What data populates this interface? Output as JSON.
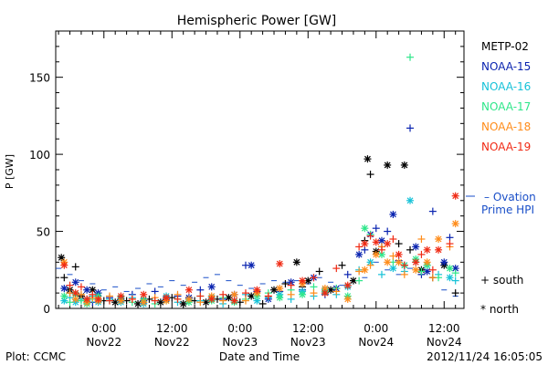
{
  "chart_data": {
    "type": "scatter",
    "title": "Hemispheric Power [GW]",
    "ylabel": "P [GW]",
    "xlabel": "Date and Time",
    "x_range_hours": [
      -4,
      14
    ],
    "ylim": [
      0,
      180
    ],
    "y_ticks": [
      0,
      50,
      100,
      150
    ],
    "y_minor_step": 10,
    "x_ticks": [
      {
        "h": 0,
        "line1": "0:00",
        "line2": "Nov22"
      },
      {
        "h": 12,
        "line1": "12:00",
        "line2": "Nov22"
      },
      {
        "h": 24,
        "line1": "0:00",
        "line2": "Nov23"
      },
      {
        "h": 36,
        "line1": "12:00",
        "line2": "Nov23"
      },
      {
        "h": 48,
        "line1": "0:00",
        "line2": "Nov24"
      },
      {
        "h": 60,
        "line1": "12:00",
        "line2": "Nov24"
      }
    ],
    "x_domain_hours": [
      -8.5,
      63.5
    ],
    "grid": false,
    "legend_position": "right",
    "series": [
      {
        "name": "METP-02",
        "color": "#000000",
        "points": [
          [
            -7.5,
            33
          ],
          [
            -7,
            20
          ],
          [
            -6,
            12
          ],
          [
            -5,
            27
          ],
          [
            -4,
            8
          ],
          [
            -3,
            6
          ],
          [
            -2,
            12
          ],
          [
            0,
            5
          ],
          [
            2,
            4
          ],
          [
            4,
            5
          ],
          [
            6,
            3
          ],
          [
            8,
            6
          ],
          [
            10,
            4
          ],
          [
            12,
            7
          ],
          [
            14,
            3
          ],
          [
            16,
            5
          ],
          [
            18,
            4
          ],
          [
            20,
            6
          ],
          [
            22,
            7
          ],
          [
            24,
            4
          ],
          [
            26,
            8
          ],
          [
            28,
            3
          ],
          [
            30,
            12
          ],
          [
            32,
            16
          ],
          [
            34,
            30
          ],
          [
            35,
            14
          ],
          [
            36,
            18
          ],
          [
            38,
            24
          ],
          [
            40,
            12
          ],
          [
            42,
            28
          ],
          [
            44,
            18
          ],
          [
            46,
            44
          ],
          [
            46.5,
            97
          ],
          [
            47,
            87
          ],
          [
            48,
            37
          ],
          [
            49,
            40
          ],
          [
            50,
            93
          ],
          [
            52,
            42
          ],
          [
            53,
            93
          ],
          [
            54,
            38
          ],
          [
            56,
            25
          ],
          [
            58,
            20
          ],
          [
            60,
            28
          ],
          [
            62,
            10
          ]
        ]
      },
      {
        "name": "NOAA-15",
        "color": "#0a24b0",
        "points": [
          [
            -7,
            13
          ],
          [
            -6,
            10
          ],
          [
            -5,
            17
          ],
          [
            -4,
            6
          ],
          [
            -3,
            12
          ],
          [
            -2,
            4
          ],
          [
            -1,
            10
          ],
          [
            1,
            7
          ],
          [
            3,
            6
          ],
          [
            5,
            9
          ],
          [
            7,
            5
          ],
          [
            9,
            11
          ],
          [
            11,
            6
          ],
          [
            13,
            8
          ],
          [
            15,
            7
          ],
          [
            17,
            12
          ],
          [
            19,
            14
          ],
          [
            21,
            6
          ],
          [
            23,
            9
          ],
          [
            25,
            28
          ],
          [
            26,
            28
          ],
          [
            27,
            11
          ],
          [
            29,
            6
          ],
          [
            31,
            11
          ],
          [
            33,
            17
          ],
          [
            35,
            12
          ],
          [
            37,
            20
          ],
          [
            39,
            9
          ],
          [
            41,
            13
          ],
          [
            43,
            22
          ],
          [
            45,
            35
          ],
          [
            46,
            38
          ],
          [
            47,
            48
          ],
          [
            48,
            52
          ],
          [
            49,
            44
          ],
          [
            50,
            50
          ],
          [
            51,
            61
          ],
          [
            52,
            31
          ],
          [
            53,
            28
          ],
          [
            54,
            117
          ],
          [
            55,
            40
          ],
          [
            56,
            22
          ],
          [
            57,
            24
          ],
          [
            58,
            63
          ],
          [
            60,
            30
          ],
          [
            61,
            46
          ],
          [
            62,
            26
          ]
        ]
      },
      {
        "name": "NOAA-16",
        "color": "#16c2d8",
        "points": [
          [
            -7,
            5
          ],
          [
            -6,
            7
          ],
          [
            -5,
            4
          ],
          [
            -4,
            6
          ],
          [
            -3,
            5
          ],
          [
            -2,
            8
          ],
          [
            -1,
            4
          ],
          [
            1,
            6
          ],
          [
            3,
            4
          ],
          [
            5,
            7
          ],
          [
            7,
            3
          ],
          [
            9,
            5
          ],
          [
            11,
            8
          ],
          [
            13,
            4
          ],
          [
            15,
            6
          ],
          [
            17,
            5
          ],
          [
            19,
            7
          ],
          [
            21,
            3
          ],
          [
            23,
            5
          ],
          [
            25,
            9
          ],
          [
            27,
            5
          ],
          [
            29,
            7
          ],
          [
            31,
            9
          ],
          [
            33,
            6
          ],
          [
            35,
            11
          ],
          [
            37,
            8
          ],
          [
            39,
            12
          ],
          [
            41,
            9
          ],
          [
            43,
            14
          ],
          [
            45,
            25
          ],
          [
            47,
            30
          ],
          [
            49,
            22
          ],
          [
            51,
            26
          ],
          [
            53,
            24
          ],
          [
            54,
            70
          ],
          [
            55,
            30
          ],
          [
            57,
            28
          ],
          [
            59,
            22
          ],
          [
            61,
            20
          ],
          [
            62,
            18
          ]
        ]
      },
      {
        "name": "NOAA-17",
        "color": "#2ee68a",
        "points": [
          [
            -7,
            8
          ],
          [
            -6,
            4
          ],
          [
            -5,
            9
          ],
          [
            -4,
            5
          ],
          [
            -3,
            3
          ],
          [
            -2,
            6
          ],
          [
            -1,
            8
          ],
          [
            1,
            5
          ],
          [
            3,
            7
          ],
          [
            5,
            4
          ],
          [
            7,
            6
          ],
          [
            9,
            3
          ],
          [
            11,
            5
          ],
          [
            13,
            6
          ],
          [
            15,
            4
          ],
          [
            17,
            8
          ],
          [
            19,
            5
          ],
          [
            21,
            7
          ],
          [
            23,
            4
          ],
          [
            25,
            6
          ],
          [
            27,
            8
          ],
          [
            29,
            10
          ],
          [
            31,
            7
          ],
          [
            33,
            12
          ],
          [
            35,
            9
          ],
          [
            37,
            14
          ],
          [
            39,
            11
          ],
          [
            41,
            13
          ],
          [
            43,
            8
          ],
          [
            45,
            18
          ],
          [
            46,
            52
          ],
          [
            47,
            48
          ],
          [
            49,
            35
          ],
          [
            51,
            30
          ],
          [
            53,
            28
          ],
          [
            54,
            163
          ],
          [
            55,
            32
          ],
          [
            56,
            24
          ],
          [
            57,
            28
          ],
          [
            59,
            20
          ],
          [
            61,
            26
          ],
          [
            62,
            23
          ]
        ]
      },
      {
        "name": "NOAA-18",
        "color": "#ff8c1a",
        "points": [
          [
            -7,
            30
          ],
          [
            -6,
            10
          ],
          [
            -5,
            6
          ],
          [
            -4,
            9
          ],
          [
            -3,
            4
          ],
          [
            -2,
            7
          ],
          [
            -1,
            5
          ],
          [
            1,
            8
          ],
          [
            3,
            5
          ],
          [
            5,
            6
          ],
          [
            7,
            4
          ],
          [
            9,
            7
          ],
          [
            11,
            5
          ],
          [
            13,
            9
          ],
          [
            15,
            6
          ],
          [
            17,
            4
          ],
          [
            19,
            8
          ],
          [
            21,
            5
          ],
          [
            23,
            9
          ],
          [
            25,
            5
          ],
          [
            27,
            10
          ],
          [
            29,
            8
          ],
          [
            31,
            13
          ],
          [
            33,
            9
          ],
          [
            35,
            16
          ],
          [
            37,
            10
          ],
          [
            39,
            13
          ],
          [
            41,
            11
          ],
          [
            43,
            6
          ],
          [
            45,
            24
          ],
          [
            46,
            25
          ],
          [
            47,
            28
          ],
          [
            48,
            35
          ],
          [
            49,
            40
          ],
          [
            50,
            30
          ],
          [
            51,
            34
          ],
          [
            52,
            30
          ],
          [
            53,
            22
          ],
          [
            55,
            25
          ],
          [
            56,
            45
          ],
          [
            57,
            30
          ],
          [
            58,
            20
          ],
          [
            59,
            45
          ],
          [
            61,
            40
          ],
          [
            62,
            55
          ]
        ]
      },
      {
        "name": "NOAA-19",
        "color": "#f02a14",
        "points": [
          [
            -7,
            28
          ],
          [
            -6,
            15
          ],
          [
            -5,
            10
          ],
          [
            -4,
            14
          ],
          [
            -3,
            6
          ],
          [
            -2,
            9
          ],
          [
            -1,
            6
          ],
          [
            1,
            5
          ],
          [
            3,
            8
          ],
          [
            5,
            6
          ],
          [
            7,
            9
          ],
          [
            9,
            5
          ],
          [
            11,
            7
          ],
          [
            13,
            6
          ],
          [
            15,
            12
          ],
          [
            17,
            8
          ],
          [
            19,
            6
          ],
          [
            21,
            9
          ],
          [
            23,
            5
          ],
          [
            25,
            10
          ],
          [
            27,
            12
          ],
          [
            29,
            8
          ],
          [
            31,
            29
          ],
          [
            33,
            15
          ],
          [
            35,
            18
          ],
          [
            37,
            20
          ],
          [
            39,
            10
          ],
          [
            41,
            26
          ],
          [
            43,
            15
          ],
          [
            45,
            40
          ],
          [
            46,
            42
          ],
          [
            47,
            47
          ],
          [
            48,
            43
          ],
          [
            49,
            38
          ],
          [
            50,
            42
          ],
          [
            51,
            45
          ],
          [
            52,
            35
          ],
          [
            53,
            28
          ],
          [
            55,
            30
          ],
          [
            56,
            35
          ],
          [
            57,
            38
          ],
          [
            58,
            25
          ],
          [
            59,
            38
          ],
          [
            61,
            42
          ],
          [
            62,
            73
          ]
        ]
      },
      {
        "name": "Ovation Prime HPI",
        "color": "#1a4fc8",
        "points": [
          [
            -8,
            26
          ],
          [
            -6,
            22
          ],
          [
            -4,
            18
          ],
          [
            -2,
            16
          ],
          [
            0,
            12
          ],
          [
            2,
            14
          ],
          [
            4,
            11
          ],
          [
            6,
            13
          ],
          [
            8,
            16
          ],
          [
            10,
            14
          ],
          [
            12,
            18
          ],
          [
            14,
            15
          ],
          [
            16,
            17
          ],
          [
            18,
            20
          ],
          [
            20,
            22
          ],
          [
            22,
            18
          ],
          [
            24,
            15
          ],
          [
            26,
            13
          ],
          [
            28,
            16
          ],
          [
            30,
            18
          ],
          [
            32,
            17
          ],
          [
            34,
            18
          ],
          [
            36,
            16
          ],
          [
            38,
            20
          ],
          [
            40,
            17
          ],
          [
            42,
            15
          ],
          [
            44,
            18
          ],
          [
            46,
            20
          ],
          [
            48,
            30
          ],
          [
            50,
            25
          ],
          [
            52,
            22
          ],
          [
            54,
            26
          ],
          [
            56,
            22
          ],
          [
            58,
            20
          ],
          [
            60,
            12
          ],
          [
            62,
            8
          ]
        ]
      }
    ]
  },
  "legend": [
    {
      "label": "METP-02",
      "color": "#000000"
    },
    {
      "label": "NOAA-15",
      "color": "#0a24b0"
    },
    {
      "label": "NOAA-16",
      "color": "#16c2d8"
    },
    {
      "label": "NOAA-17",
      "color": "#2ee68a"
    },
    {
      "label": "NOAA-18",
      "color": "#ff8c1a"
    },
    {
      "label": "NOAA-19",
      "color": "#f02a14"
    }
  ],
  "ovation_label_1": "– Ovation",
  "ovation_label_2": "Prime HPI",
  "ovation_color": "#1a4fc8",
  "south_label": "+ south",
  "north_label": "* north",
  "footer_left": "Plot: CCMC",
  "footer_center": "Date and Time",
  "footer_right": "2012/11/24 16:05:05"
}
